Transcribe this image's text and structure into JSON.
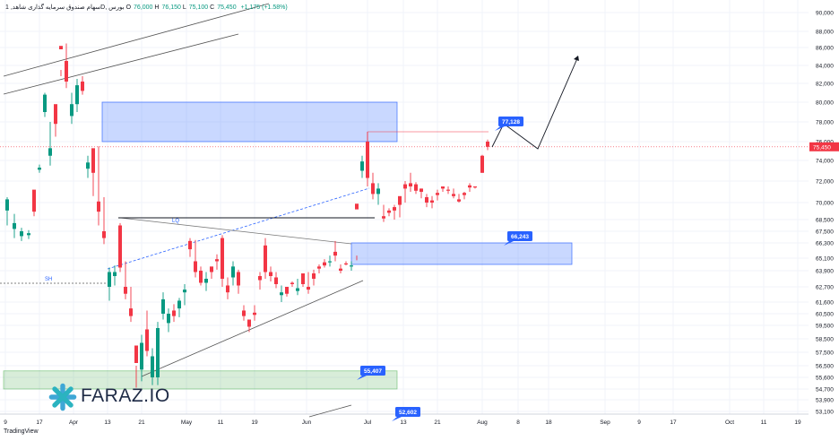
{
  "legend": {
    "symbol_name": "سهام‌ صندوق سرمایه گذاری شاهد",
    "suffix": ", 1D, بورس",
    "open_label": "O",
    "open": "76,000",
    "high_label": "H",
    "high": "76,150",
    "low_label": "L",
    "low": "75,100",
    "close_label": "C",
    "close": "75,450",
    "change": "+1,175 (+1.58%)"
  },
  "branding": {
    "logo_text": "FARAZ.IO",
    "footer": "TradingView"
  },
  "colors": {
    "up": "#089981",
    "down": "#f23645",
    "zone_blue": "#2962ff",
    "zone_green": "#4caf50",
    "label_blue": "#2962ff",
    "grid": "#f0f3fa"
  },
  "chart_data": {
    "type": "candlestick",
    "y_axis_ticks": [
      "90,000",
      "88,000",
      "86,000",
      "84,000",
      "82,000",
      "80,000",
      "78,000",
      "76,000",
      "74,000",
      "72,000",
      "70,000",
      "68,500",
      "67,500",
      "66,300",
      "65,100",
      "63,900",
      "62,700",
      "61,600",
      "60,500",
      "59,500",
      "58,500",
      "57,500",
      "56,500",
      "55,600",
      "54,700",
      "53,900",
      "53,100"
    ],
    "x_axis_ticks": [
      "9",
      "17",
      "Apr",
      "13",
      "21",
      "May",
      "11",
      "19",
      "Jun",
      "Jul",
      "13",
      "21",
      "Aug",
      "8",
      "18",
      "Sep",
      "9",
      "17",
      "Oct",
      "11",
      "19"
    ],
    "last_price_label": "75,450",
    "zones": [
      {
        "name": "supply-zone",
        "color": "blue",
        "from": 76000,
        "to": 80000
      },
      {
        "name": "demand-zone",
        "color": "blue",
        "from": 64500,
        "to": 66300
      },
      {
        "name": "support-zone",
        "color": "green",
        "from": 54700,
        "to": 56100
      }
    ],
    "labels": [
      {
        "text": "77,128",
        "price": 77128
      },
      {
        "text": "66,243",
        "price": 66243
      },
      {
        "text": "55,407",
        "price": 55407
      },
      {
        "text": "52,602",
        "price": 52602
      }
    ],
    "annotations": [
      {
        "text": "LQ",
        "price": 68500
      },
      {
        "text": "SH",
        "price": 63500
      }
    ],
    "levels": [
      {
        "name": "horizontal-level",
        "price": 68500
      }
    ]
  }
}
